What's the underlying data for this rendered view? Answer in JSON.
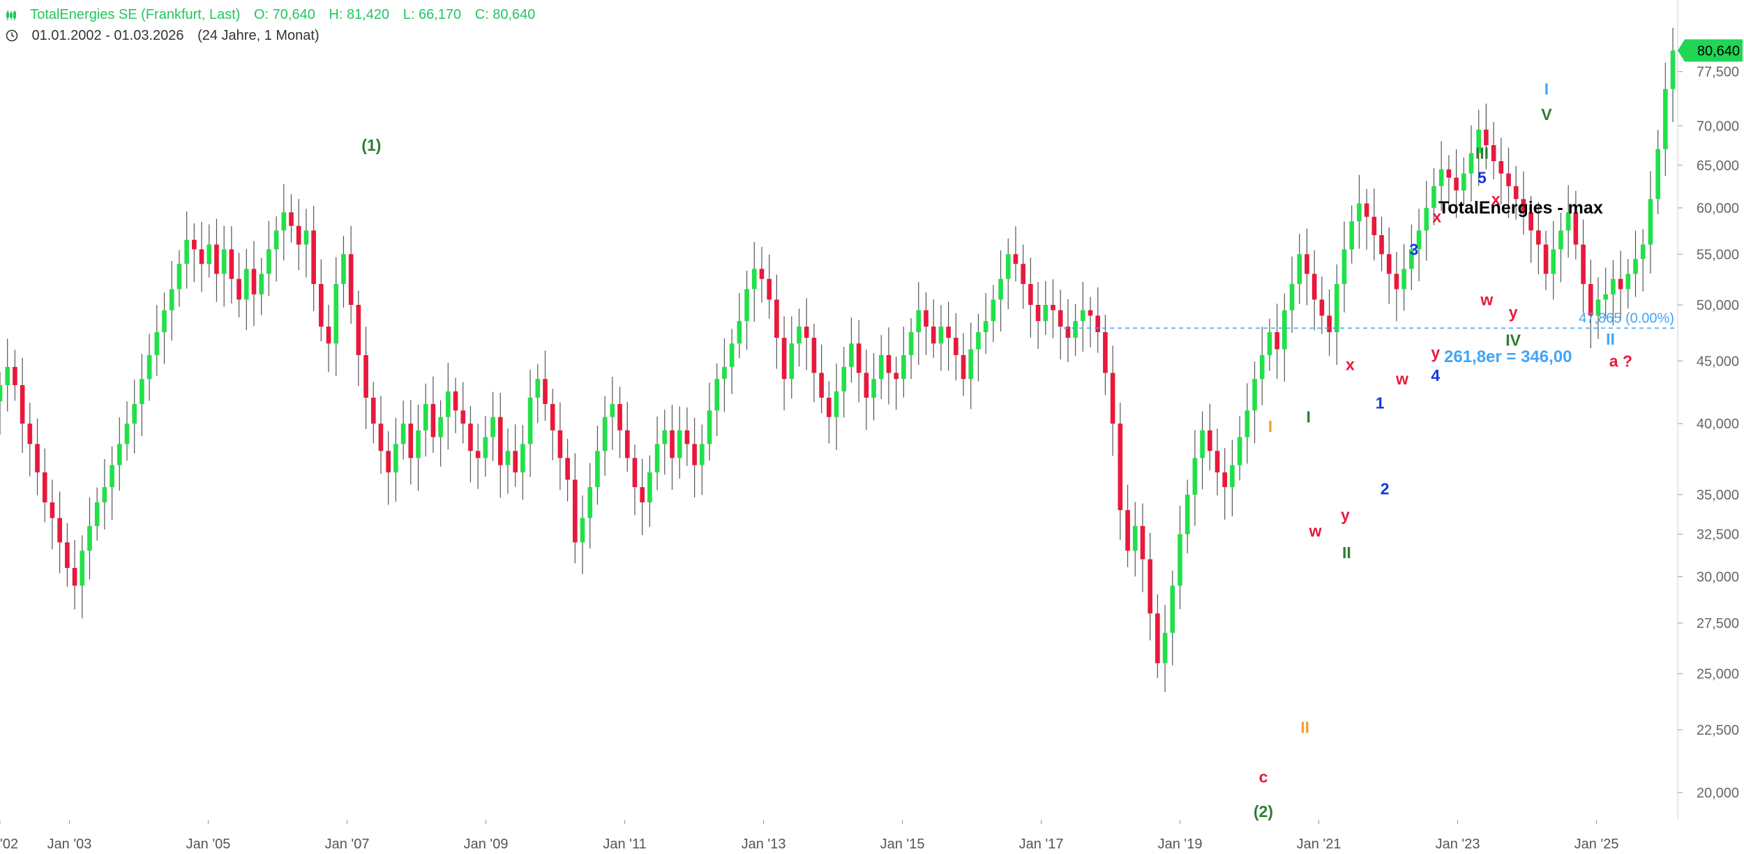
{
  "header": {
    "instrument": "TotalEnergies SE (Frankfurt, Last)",
    "open": "O: 70,640",
    "high": "H: 81,420",
    "low": "L: 66,170",
    "close": "C: 80,640",
    "date_range": "01.01.2002 - 01.03.2026",
    "duration": "(24 Jahre, 1 Monat)"
  },
  "colors": {
    "up": "#22e04a",
    "down": "#e8193c",
    "wick": "#555555",
    "level": "#42a5f5",
    "price_tag": "#1fd655"
  },
  "chart_data": {
    "type": "candlestick",
    "title": "TotalEnergies - max",
    "y_scale": "log",
    "ylim": [
      19000,
      82500
    ],
    "xlim": [
      2002.0,
      2026.17
    ],
    "y_ticks": [
      20000,
      22500,
      25000,
      27500,
      30000,
      32500,
      35000,
      40000,
      45000,
      50000,
      55000,
      60000,
      65000,
      70000,
      77500
    ],
    "y_tick_labels": [
      "20,000",
      "22,500",
      "25,000",
      "27,500",
      "30,000",
      "32,500",
      "35,000",
      "40,000",
      "45,000",
      "50,000",
      "55,000",
      "60,000",
      "65,000",
      "70,000",
      "77,500"
    ],
    "x_ticks": [
      2002,
      2003,
      2005,
      2007,
      2009,
      2011,
      2013,
      2015,
      2017,
      2019,
      2021,
      2023,
      2025
    ],
    "x_tick_labels": [
      "'02",
      "Jan '03",
      "Jan '05",
      "Jan '07",
      "Jan '09",
      "Jan '11",
      "Jan '13",
      "Jan '15",
      "Jan '17",
      "Jan '19",
      "Jan '21",
      "Jan '23",
      "Jan '25"
    ],
    "last_price": 80640,
    "last_price_label": "80,640",
    "level_line": {
      "value": 47865,
      "label": "47,865 (0.00%)"
    },
    "extension_note": "261,8er = 346,00",
    "series": [
      {
        "closes": [
          43000,
          44500,
          43000,
          40000,
          38500,
          36500,
          34500,
          33500,
          32000,
          30500,
          29500,
          31500,
          33000,
          34500,
          35500,
          37000,
          38500,
          40000,
          41500,
          43500,
          45500,
          47500,
          49500,
          51500,
          54000,
          56500,
          55500,
          54000,
          56000,
          53000,
          55500,
          52500,
          50500,
          53500,
          51000,
          53000,
          55500,
          57500,
          59500,
          58000,
          56000,
          57500,
          52000,
          48000,
          46500,
          52000,
          55000,
          50000,
          45500,
          42000,
          40000,
          38000,
          36500,
          38500,
          40000,
          37500,
          39500,
          41500,
          39000,
          40500,
          42500,
          41000,
          40000,
          38000,
          37500,
          39000,
          40500,
          37000,
          38000,
          36500,
          38500,
          42000,
          43500,
          41500,
          39500,
          37500,
          36000,
          32000,
          33500,
          35500,
          38000,
          40500,
          41500,
          39500,
          37500,
          35500,
          34500,
          36500,
          38500,
          39500,
          37500,
          39500,
          38500,
          37000,
          38500,
          41000,
          43500,
          44500,
          46500,
          48500,
          51500,
          53500,
          52500,
          50500,
          47000,
          43500,
          46500,
          48000,
          47000,
          44000,
          42000,
          40500,
          42500,
          44500,
          46500,
          44000,
          42000,
          43500,
          45500,
          44000,
          43500,
          45500,
          47500,
          49500,
          48000,
          46500,
          48000,
          47000,
          45500,
          43500,
          46000,
          47500,
          48500,
          50500,
          52500,
          55000,
          54000,
          52000,
          50000,
          48500,
          50000,
          49500,
          48000,
          47000,
          48500,
          49500,
          49000,
          47500,
          44000,
          40000,
          34000,
          31500,
          33000,
          31000,
          28000,
          25500,
          27000,
          29500,
          32500,
          35000,
          37500,
          39500,
          38000,
          36500,
          35500,
          37000,
          39000,
          41000,
          43500,
          45500,
          47500,
          46000,
          49500,
          52000,
          55000,
          53000,
          50500,
          49000,
          47500,
          52000,
          55500,
          58500,
          60500,
          59000,
          57000,
          55000,
          53000,
          51500,
          53500,
          55500,
          57500,
          60000,
          62500,
          64500,
          63500,
          62000,
          64000,
          66500,
          69500,
          67500,
          65500,
          64000,
          62500,
          61000,
          59500,
          57500,
          56000,
          53000,
          55500,
          57500,
          59500,
          56000,
          52000,
          49000,
          50500,
          51000,
          52500,
          51500,
          53000,
          54500,
          56000,
          61000,
          67000,
          75000,
          80640
        ]
      }
    ],
    "wave_labels": [
      {
        "text": "(1)",
        "x": 2007.35,
        "y": 67500,
        "color": "#2e7d32"
      },
      {
        "text": "(2)",
        "x": 2020.2,
        "y": 19300,
        "color": "#2e7d32"
      },
      {
        "text": "c",
        "x": 2020.2,
        "y": 20600,
        "color": "#e8193c"
      },
      {
        "text": "I",
        "x": 2020.3,
        "y": 39800,
        "color": "#f0a030"
      },
      {
        "text": "II",
        "x": 2020.8,
        "y": 22600,
        "color": "#f0a030"
      },
      {
        "text": "w",
        "x": 2020.95,
        "y": 32700,
        "color": "#e8193c"
      },
      {
        "text": "I",
        "x": 2020.85,
        "y": 40500,
        "color": "#2e7d32"
      },
      {
        "text": "II",
        "x": 2021.4,
        "y": 31400,
        "color": "#2e7d32"
      },
      {
        "text": "y",
        "x": 2021.38,
        "y": 33700,
        "color": "#e8193c"
      },
      {
        "text": "x",
        "x": 2021.45,
        "y": 44700,
        "color": "#e8193c"
      },
      {
        "text": "1",
        "x": 2021.88,
        "y": 41600,
        "color": "#1535e0"
      },
      {
        "text": "2",
        "x": 2021.95,
        "y": 35400,
        "color": "#1535e0"
      },
      {
        "text": "w",
        "x": 2022.2,
        "y": 43500,
        "color": "#e8193c"
      },
      {
        "text": "3",
        "x": 2022.37,
        "y": 55500,
        "color": "#1535e0"
      },
      {
        "text": "x",
        "x": 2022.7,
        "y": 59000,
        "color": "#e8193c"
      },
      {
        "text": "y",
        "x": 2022.68,
        "y": 45700,
        "color": "#e8193c"
      },
      {
        "text": "4",
        "x": 2022.68,
        "y": 43800,
        "color": "#1535e0"
      },
      {
        "text": "5",
        "x": 2023.35,
        "y": 63500,
        "color": "#1535e0"
      },
      {
        "text": "III",
        "x": 2023.35,
        "y": 66500,
        "color": "#2e7d32"
      },
      {
        "text": "x",
        "x": 2023.55,
        "y": 61000,
        "color": "#e8193c"
      },
      {
        "text": "w",
        "x": 2023.42,
        "y": 50500,
        "color": "#e8193c"
      },
      {
        "text": "y",
        "x": 2023.8,
        "y": 49300,
        "color": "#e8193c"
      },
      {
        "text": "IV",
        "x": 2023.8,
        "y": 46800,
        "color": "#2e7d32"
      },
      {
        "text": "V",
        "x": 2024.28,
        "y": 71500,
        "color": "#2e7d32"
      },
      {
        "text": "I",
        "x": 2024.28,
        "y": 75000,
        "color": "#42a5f5"
      },
      {
        "text": "II",
        "x": 2025.2,
        "y": 46900,
        "color": "#42a5f5"
      },
      {
        "text": "a ?",
        "x": 2025.35,
        "y": 45000,
        "color": "#e8193c"
      }
    ]
  }
}
